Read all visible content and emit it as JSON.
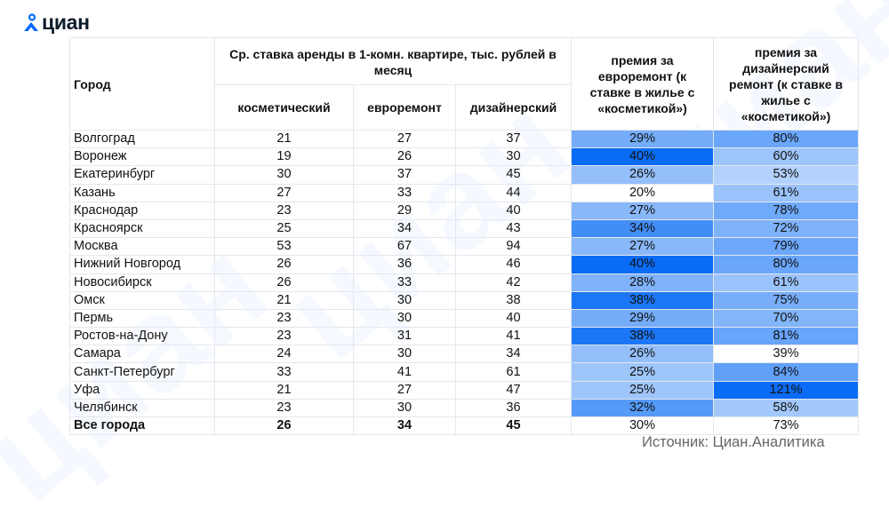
{
  "logo": {
    "icon": "cian-person-pin-icon",
    "text": "циан"
  },
  "watermark": {
    "text": "циан"
  },
  "table": {
    "header": {
      "city": "Город",
      "rent_group": "Ср. ставка аренды в 1-комн. квартире, тыс. рублей в месяц",
      "cosmetic": "косметический",
      "euro": "евроремонт",
      "designer": "дизайнерский",
      "premium_euro": "премия за евроремонт (к ставке в жилье с «косметикой»)",
      "premium_designer": "премия за дизайнерский ремонт (к ставке в жилье с «косметикой»)"
    },
    "rows": [
      {
        "city": "Волгоград",
        "cosmetic": "21",
        "euro": "27",
        "designer": "37",
        "prem_euro": "29%",
        "prem_designer": "80%"
      },
      {
        "city": "Воронеж",
        "cosmetic": "19",
        "euro": "26",
        "designer": "30",
        "prem_euro": "40%",
        "prem_designer": "60%"
      },
      {
        "city": "Екатеринбург",
        "cosmetic": "30",
        "euro": "37",
        "designer": "45",
        "prem_euro": "26%",
        "prem_designer": "53%"
      },
      {
        "city": "Казань",
        "cosmetic": "27",
        "euro": "33",
        "designer": "44",
        "prem_euro": "20%",
        "prem_designer": "61%"
      },
      {
        "city": "Краснодар",
        "cosmetic": "23",
        "euro": "29",
        "designer": "40",
        "prem_euro": "27%",
        "prem_designer": "78%"
      },
      {
        "city": "Красноярск",
        "cosmetic": "25",
        "euro": "34",
        "designer": "43",
        "prem_euro": "34%",
        "prem_designer": "72%"
      },
      {
        "city": "Москва",
        "cosmetic": "53",
        "euro": "67",
        "designer": "94",
        "prem_euro": "27%",
        "prem_designer": "79%"
      },
      {
        "city": "Нижний Новгород",
        "cosmetic": "26",
        "euro": "36",
        "designer": "46",
        "prem_euro": "40%",
        "prem_designer": "80%"
      },
      {
        "city": "Новосибирск",
        "cosmetic": "26",
        "euro": "33",
        "designer": "42",
        "prem_euro": "28%",
        "prem_designer": "61%"
      },
      {
        "city": "Омск",
        "cosmetic": "21",
        "euro": "30",
        "designer": "38",
        "prem_euro": "38%",
        "prem_designer": "75%"
      },
      {
        "city": "Пермь",
        "cosmetic": "23",
        "euro": "30",
        "designer": "40",
        "prem_euro": "29%",
        "prem_designer": "70%"
      },
      {
        "city": "Ростов-на-Дону",
        "cosmetic": "23",
        "euro": "31",
        "designer": "41",
        "prem_euro": "38%",
        "prem_designer": "81%"
      },
      {
        "city": "Самара",
        "cosmetic": "24",
        "euro": "30",
        "designer": "34",
        "prem_euro": "26%",
        "prem_designer": "39%"
      },
      {
        "city": "Санкт-Петербург",
        "cosmetic": "33",
        "euro": "41",
        "designer": "61",
        "prem_euro": "25%",
        "prem_designer": "84%"
      },
      {
        "city": "Уфа",
        "cosmetic": "21",
        "euro": "27",
        "designer": "47",
        "prem_euro": "25%",
        "prem_designer": "121%"
      },
      {
        "city": "Челябинск",
        "cosmetic": "23",
        "euro": "30",
        "designer": "36",
        "prem_euro": "32%",
        "prem_designer": "58%"
      }
    ],
    "total": {
      "city": "Все города",
      "cosmetic": "26",
      "euro": "34",
      "designer": "45",
      "prem_euro": "30%",
      "prem_designer": "73%"
    }
  },
  "source": "Источник: Циан.Аналитика",
  "colors": {
    "heat_low": "#ffffff",
    "heat_high": "#0a6cf5",
    "border": "#e3e7ee",
    "brand_blue": "#0468ff",
    "text": "#121212",
    "source_text": "#666666"
  },
  "chart_data": {
    "type": "table",
    "title": "Ср. ставка аренды в 1-комн. квартире, тыс. рублей в месяц",
    "columns": [
      "Город",
      "косметический",
      "евроремонт",
      "дизайнерский",
      "премия за евроремонт (к ставке в жилье с «косметикой»)",
      "премия за дизайнерский ремонт (к ставке в жилье с «косметикой»)"
    ],
    "categories": [
      "Волгоград",
      "Воронеж",
      "Екатеринбург",
      "Казань",
      "Краснодар",
      "Красноярск",
      "Москва",
      "Нижний Новгород",
      "Новосибирск",
      "Омск",
      "Пермь",
      "Ростов-на-Дону",
      "Самара",
      "Санкт-Петербург",
      "Уфа",
      "Челябинск",
      "Все города"
    ],
    "series": [
      {
        "name": "косметический",
        "values": [
          21,
          19,
          30,
          27,
          23,
          25,
          53,
          26,
          26,
          21,
          23,
          23,
          24,
          33,
          21,
          23,
          26
        ]
      },
      {
        "name": "евроремонт",
        "values": [
          27,
          26,
          37,
          33,
          29,
          34,
          67,
          36,
          33,
          30,
          30,
          31,
          30,
          41,
          27,
          30,
          34
        ]
      },
      {
        "name": "дизайнерский",
        "values": [
          37,
          30,
          45,
          44,
          40,
          43,
          94,
          46,
          42,
          38,
          40,
          41,
          34,
          61,
          47,
          36,
          45
        ]
      },
      {
        "name": "премия за евроремонт, %",
        "values": [
          29,
          40,
          26,
          20,
          27,
          34,
          27,
          40,
          28,
          38,
          29,
          38,
          26,
          25,
          25,
          32,
          30
        ]
      },
      {
        "name": "премия за дизайнерский ремонт, %",
        "values": [
          80,
          60,
          53,
          61,
          78,
          72,
          79,
          80,
          61,
          75,
          70,
          81,
          39,
          84,
          121,
          58,
          73
        ]
      }
    ],
    "heatmap_columns": [
      "премия за евроремонт, %",
      "премия за дизайнерский ремонт, %"
    ],
    "source": "Источник: Циан.Аналитика"
  }
}
